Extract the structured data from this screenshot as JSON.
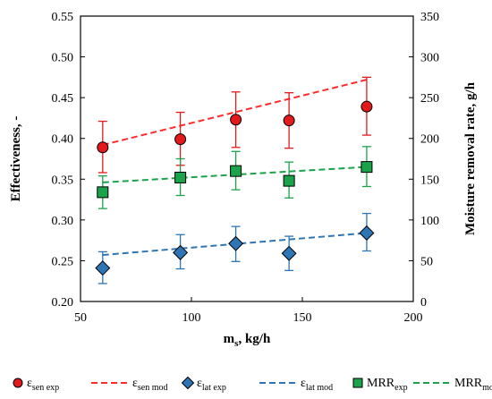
{
  "chart_data": {
    "type": "scatter",
    "xlabel": {
      "main": "m",
      "sub": "s",
      "rest": ", kg/h"
    },
    "ylabel": "Effectiveness, -",
    "y2label": "Moisture removal rate, g/h",
    "xlim": [
      50,
      200
    ],
    "ylim": [
      0.2,
      0.55
    ],
    "y2lim": [
      0,
      350
    ],
    "xticks": [
      "50",
      "100",
      "150",
      "200"
    ],
    "yticks": [
      "0.20",
      "0.25",
      "0.30",
      "0.35",
      "0.40",
      "0.45",
      "0.50",
      "0.55"
    ],
    "y2ticks": [
      "0",
      "50",
      "100",
      "150",
      "200",
      "250",
      "300",
      "350"
    ],
    "grid": false,
    "legend_position": "bottom",
    "x": [
      60,
      95,
      120,
      144,
      179
    ],
    "series": [
      {
        "name": "ε_sen exp",
        "kind": "marker",
        "marker": "circle",
        "axis": "left",
        "color": "#e31a1c",
        "values": [
          0.389,
          0.399,
          0.423,
          0.422,
          0.439
        ],
        "err_low": [
          0.358,
          0.367,
          0.389,
          0.388,
          0.404
        ],
        "err_high": [
          0.421,
          0.432,
          0.457,
          0.456,
          0.475
        ]
      },
      {
        "name": "ε_sen mod",
        "kind": "line",
        "axis": "left",
        "color": "#ff2a2a",
        "x": [
          60,
          179
        ],
        "values": [
          0.392,
          0.472
        ]
      },
      {
        "name": "ε_lat exp",
        "kind": "marker",
        "marker": "diamond",
        "axis": "left",
        "color": "#2e75b6",
        "values": [
          0.241,
          0.26,
          0.271,
          0.259,
          0.284
        ],
        "err_low": [
          0.222,
          0.24,
          0.249,
          0.238,
          0.262
        ],
        "err_high": [
          0.261,
          0.282,
          0.292,
          0.28,
          0.308
        ]
      },
      {
        "name": "ε_lat mod",
        "kind": "line",
        "axis": "left",
        "color": "#2e75b6",
        "x": [
          60,
          179
        ],
        "values": [
          0.257,
          0.284
        ]
      },
      {
        "name": "MRR_exp",
        "kind": "marker",
        "marker": "square",
        "axis": "right",
        "color": "#1aa34a",
        "values": [
          134,
          152,
          160,
          148,
          165
        ],
        "err_low": [
          114,
          130,
          137,
          127,
          141
        ],
        "err_high": [
          154,
          175,
          184,
          171,
          190
        ]
      },
      {
        "name": "MRR_mod",
        "kind": "line",
        "axis": "right",
        "color": "#1aa34a",
        "x": [
          60,
          179
        ],
        "values": [
          146,
          165
        ]
      }
    ],
    "legend": [
      {
        "main": "ε",
        "sub": "sen exp",
        "kind": "marker",
        "marker": "circle",
        "color": "#e31a1c"
      },
      {
        "main": "ε",
        "sub": "sen mod",
        "kind": "line",
        "color": "#ff2a2a"
      },
      {
        "main": "ε",
        "sub": "lat exp",
        "kind": "marker",
        "marker": "diamond",
        "color": "#2e75b6"
      },
      {
        "main": "ε",
        "sub": "lat mod",
        "kind": "line",
        "color": "#2e75b6"
      },
      {
        "main": "MRR",
        "sub": "exp",
        "kind": "marker",
        "marker": "square",
        "color": "#1aa34a"
      },
      {
        "main": "MRR",
        "sub": "mod",
        "kind": "line",
        "color": "#1aa34a"
      }
    ]
  }
}
